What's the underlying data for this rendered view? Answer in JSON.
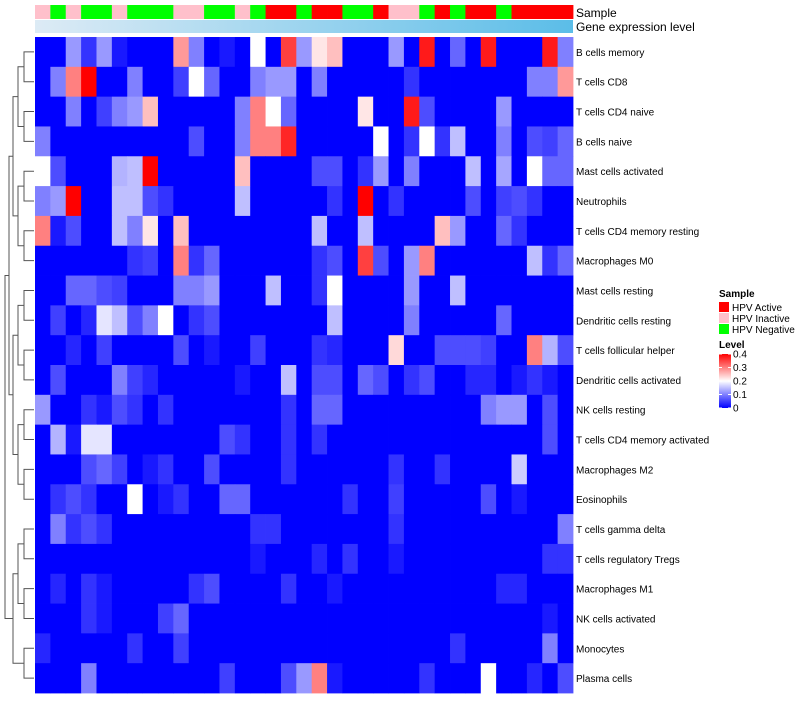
{
  "chart_data": {
    "type": "heatmap",
    "title": "",
    "annotation_tracks": [
      "Sample",
      "Gene expression level"
    ],
    "sample_groups": [
      "I",
      "N",
      "I",
      "N",
      "N",
      "I",
      "N",
      "N",
      "N",
      "I",
      "I",
      "N",
      "N",
      "I",
      "N",
      "A",
      "A",
      "N",
      "A",
      "A",
      "N",
      "N",
      "A",
      "I",
      "I",
      "N",
      "A",
      "N",
      "A",
      "A",
      "N",
      "A",
      "A",
      "A",
      "A"
    ],
    "rows": [
      "B cells memory",
      "T cells CD8",
      "T cells CD4 naive",
      "B cells naive",
      "Mast cells activated",
      "Neutrophils",
      "T cells CD4 memory resting",
      "Macrophages M0",
      "Mast cells resting",
      "Dendritic cells resting",
      "T cells follicular helper",
      "Dendritic cells activated",
      "NK cells resting",
      "T cells CD4 memory activated",
      "Macrophages M2",
      "Eosinophils",
      "T cells gamma delta",
      "T cells regulatory  Tregs",
      "Macrophages M1",
      "NK cells activated",
      "Monocytes",
      "Plasma cells"
    ],
    "values": [
      [
        0,
        0,
        0.12,
        0.04,
        0.12,
        0.02,
        0,
        0,
        0,
        0.28,
        0.1,
        0,
        0.02,
        0,
        0.2,
        0,
        0.35,
        0.12,
        0.22,
        0.25,
        0,
        0,
        0,
        0.12,
        0,
        0.38,
        0,
        0.08,
        0,
        0.38,
        0,
        0,
        0,
        0.38,
        0.1
      ],
      [
        0,
        0.1,
        0.3,
        0.4,
        0,
        0,
        0.1,
        0,
        0,
        0.05,
        0.2,
        0.08,
        0,
        0,
        0.1,
        0.12,
        0.12,
        0,
        0.1,
        0,
        0,
        0,
        0,
        0,
        0.04,
        0,
        0,
        0,
        0,
        0,
        0,
        0,
        0.1,
        0.1,
        0.28
      ],
      [
        0,
        0,
        0.1,
        0,
        0.05,
        0.1,
        0.12,
        0.25,
        0,
        0,
        0,
        0,
        0,
        0.1,
        0.3,
        0.2,
        0.08,
        0,
        0,
        0,
        0,
        0.22,
        0,
        0,
        0.38,
        0.06,
        0,
        0,
        0,
        0,
        0.12,
        0,
        0,
        0,
        0
      ],
      [
        0.1,
        0,
        0,
        0,
        0,
        0,
        0,
        0,
        0,
        0,
        0.06,
        0,
        0,
        0.1,
        0.3,
        0.3,
        0.37,
        0,
        0,
        0,
        0,
        0,
        0.2,
        0,
        0.04,
        0.2,
        0.04,
        0.15,
        0,
        0,
        0.1,
        0,
        0.06,
        0.05,
        0.08
      ],
      [
        0.2,
        0.06,
        0,
        0,
        0,
        0.14,
        0.15,
        0.42,
        0,
        0,
        0,
        0,
        0,
        0.25,
        0,
        0,
        0,
        0,
        0.06,
        0.06,
        0,
        0.04,
        0.12,
        0,
        0.1,
        0,
        0,
        0,
        0.15,
        0,
        0.13,
        0,
        0.2,
        0.08,
        0.08
      ],
      [
        0.1,
        0.12,
        0.42,
        0,
        0,
        0.15,
        0.15,
        0.06,
        0.04,
        0,
        0,
        0,
        0,
        0.15,
        0,
        0,
        0,
        0,
        0,
        0.04,
        0,
        0.42,
        0,
        0.04,
        0,
        0,
        0,
        0,
        0.06,
        0,
        0.05,
        0.06,
        0.04,
        0,
        0
      ],
      [
        0.3,
        0.02,
        0.06,
        0,
        0,
        0.15,
        0.1,
        0.22,
        0,
        0.25,
        0,
        0,
        0,
        0,
        0,
        0,
        0,
        0,
        0.15,
        0,
        0,
        0.15,
        0,
        0,
        0,
        0,
        0.25,
        0.12,
        0,
        0,
        0.08,
        0.04,
        0,
        0,
        0
      ],
      [
        0,
        0,
        0,
        0,
        0,
        0,
        0.04,
        0.05,
        0,
        0.3,
        0.04,
        0.08,
        0,
        0,
        0,
        0,
        0,
        0,
        0.04,
        0.06,
        0,
        0.35,
        0.06,
        0,
        0.12,
        0.3,
        0,
        0,
        0,
        0,
        0,
        0,
        0.15,
        0.04,
        0.08
      ],
      [
        0,
        0,
        0.08,
        0.08,
        0.06,
        0.05,
        0,
        0,
        0,
        0.1,
        0.1,
        0.12,
        0,
        0,
        0,
        0.15,
        0,
        0,
        0.04,
        0.2,
        0,
        0,
        0,
        0,
        0.12,
        0,
        0,
        0.15,
        0,
        0,
        0,
        0,
        0,
        0,
        0
      ],
      [
        0,
        0.05,
        0,
        0.03,
        0.18,
        0.15,
        0.06,
        0.1,
        0.2,
        0,
        0.04,
        0.06,
        0,
        0,
        0,
        0,
        0,
        0,
        0,
        0.15,
        0,
        0,
        0,
        0,
        0.1,
        0,
        0,
        0,
        0,
        0,
        0.08,
        0,
        0,
        0,
        0
      ],
      [
        0,
        0,
        0.03,
        0,
        0.05,
        0,
        0,
        0,
        0,
        0.06,
        0,
        0.02,
        0,
        0,
        0.05,
        0,
        0,
        0,
        0.04,
        0.03,
        0,
        0,
        0,
        0.23,
        0,
        0,
        0.06,
        0.06,
        0.06,
        0.05,
        0,
        0,
        0.3,
        0.14,
        0.06
      ],
      [
        0,
        0.06,
        0,
        0,
        0,
        0.1,
        0.05,
        0.03,
        0,
        0,
        0,
        0,
        0,
        0.02,
        0,
        0,
        0.15,
        0,
        0.06,
        0.06,
        0,
        0.08,
        0.06,
        0,
        0.04,
        0.06,
        0,
        0,
        0.03,
        0.03,
        0,
        0.02,
        0.04,
        0.02,
        0
      ],
      [
        0.12,
        0,
        0,
        0.04,
        0.02,
        0.06,
        0.04,
        0,
        0.04,
        0,
        0,
        0,
        0,
        0,
        0,
        0,
        0.04,
        0,
        0.08,
        0.08,
        0,
        0,
        0,
        0,
        0,
        0,
        0,
        0,
        0,
        0.1,
        0.12,
        0.12,
        0,
        0.06,
        0
      ],
      [
        0,
        0.14,
        0.02,
        0.18,
        0.18,
        0,
        0,
        0,
        0,
        0,
        0,
        0,
        0.06,
        0.04,
        0,
        0,
        0.04,
        0,
        0.04,
        0,
        0,
        0,
        0,
        0,
        0,
        0,
        0,
        0,
        0,
        0,
        0,
        0,
        0,
        0.06,
        0
      ],
      [
        0,
        0,
        0,
        0.06,
        0.08,
        0.05,
        0,
        0.02,
        0.04,
        0,
        0,
        0.06,
        0,
        0,
        0,
        0,
        0.04,
        0,
        0,
        0,
        0,
        0,
        0,
        0.04,
        0,
        0,
        0.04,
        0,
        0,
        0,
        0,
        0.16,
        0,
        0,
        0
      ],
      [
        0,
        0.04,
        0.06,
        0.04,
        0,
        0,
        0.2,
        0,
        0.02,
        0.04,
        0,
        0,
        0.08,
        0.08,
        0,
        0,
        0,
        0,
        0,
        0,
        0.04,
        0,
        0,
        0.05,
        0,
        0,
        0,
        0,
        0,
        0.06,
        0,
        0.02,
        0,
        0,
        0
      ],
      [
        0,
        0.1,
        0.04,
        0.06,
        0.04,
        0,
        0,
        0,
        0,
        0,
        0,
        0,
        0,
        0,
        0.04,
        0.04,
        0,
        0,
        0,
        0,
        0,
        0,
        0,
        0.04,
        0,
        0,
        0,
        0,
        0,
        0,
        0,
        0,
        0,
        0,
        0.1
      ],
      [
        0,
        0,
        0,
        0,
        0,
        0,
        0,
        0,
        0,
        0,
        0,
        0,
        0,
        0,
        0.02,
        0,
        0,
        0,
        0.03,
        0,
        0.04,
        0,
        0,
        0.02,
        0,
        0,
        0,
        0,
        0,
        0,
        0,
        0,
        0,
        0.04,
        0.04
      ],
      [
        0,
        0.03,
        0,
        0.04,
        0.02,
        0,
        0,
        0,
        0,
        0,
        0.04,
        0.06,
        0,
        0,
        0,
        0,
        0.04,
        0,
        0,
        0.02,
        0,
        0,
        0,
        0,
        0,
        0,
        0,
        0,
        0,
        0,
        0.03,
        0.03,
        0,
        0,
        0
      ],
      [
        0,
        0,
        0,
        0.04,
        0.02,
        0,
        0,
        0,
        0.05,
        0.08,
        0,
        0,
        0,
        0,
        0,
        0,
        0,
        0,
        0,
        0,
        0,
        0,
        0,
        0,
        0,
        0,
        0,
        0,
        0,
        0,
        0,
        0,
        0,
        0.02,
        0
      ],
      [
        0.03,
        0,
        0,
        0,
        0,
        0,
        0.04,
        0,
        0,
        0.05,
        0,
        0,
        0,
        0,
        0,
        0,
        0,
        0,
        0,
        0,
        0,
        0,
        0,
        0,
        0,
        0,
        0,
        0.04,
        0,
        0,
        0,
        0,
        0,
        0.1,
        0
      ],
      [
        0,
        0,
        0,
        0.1,
        0,
        0,
        0,
        0,
        0,
        0,
        0,
        0,
        0.05,
        0,
        0,
        0,
        0.06,
        0.12,
        0.3,
        0.02,
        0,
        0,
        0,
        0,
        0,
        0.04,
        0,
        0,
        0,
        0.2,
        0,
        0,
        0.03,
        0,
        0.06
      ]
    ],
    "legend": {
      "sample_title": "Sample",
      "sample_entries": [
        {
          "key": "A",
          "label": "HPV Active",
          "color": "#ff0000"
        },
        {
          "key": "I",
          "label": "HPV Inactive",
          "color": "#ffc0cb"
        },
        {
          "key": "N",
          "label": "HPV Negative",
          "color": "#00ff00"
        }
      ],
      "level_title": "Level",
      "level_ticks": [
        "0.4",
        "0.3",
        "0.2",
        "0.1",
        "0"
      ],
      "level_range": [
        0,
        0.4
      ]
    },
    "colors": {
      "low": "#0000ff",
      "mid": "#ffffff",
      "high": "#ff0000",
      "expression_track_left": "#ddebf5",
      "expression_track_right": "#5bbde8"
    },
    "row_dendrogram": true,
    "grid": false,
    "legend_position": "right"
  }
}
